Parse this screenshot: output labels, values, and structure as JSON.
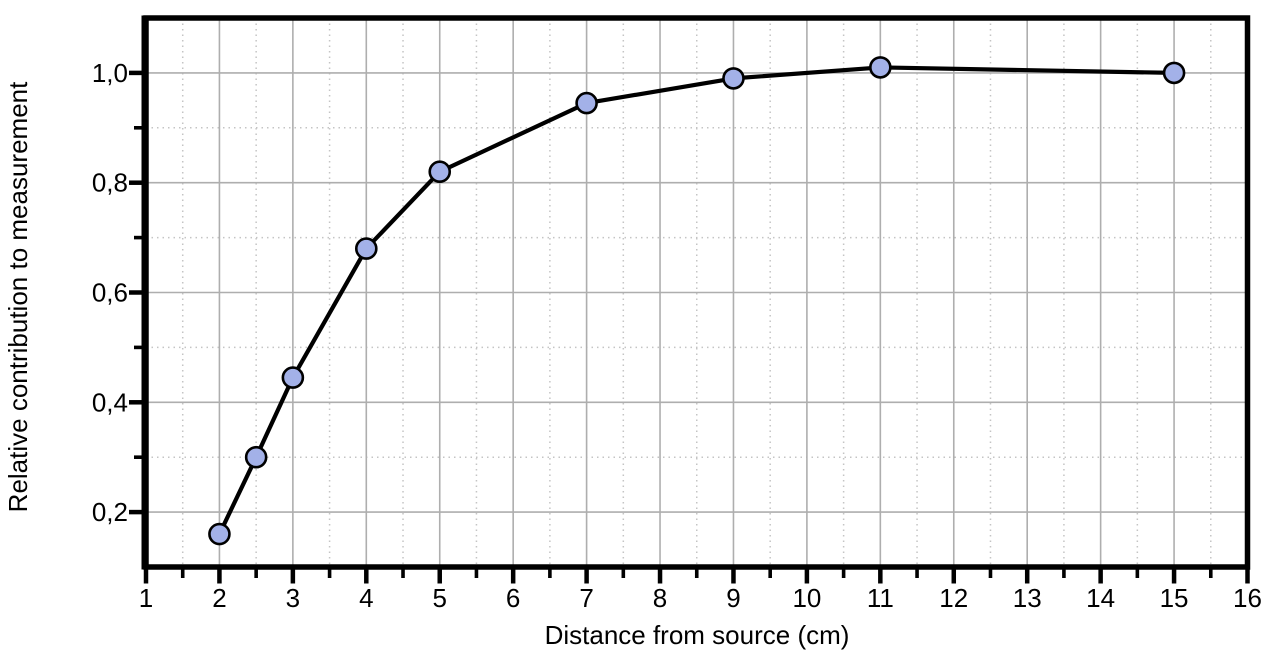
{
  "chart_data": {
    "type": "line",
    "xlabel": "Distance from source (cm)",
    "ylabel": "Relative contribution to measurement",
    "x": [
      2,
      2.5,
      3,
      4,
      5,
      7,
      9,
      11,
      15
    ],
    "y": [
      0.16,
      0.3,
      0.445,
      0.68,
      0.82,
      0.945,
      0.99,
      1.01,
      1.0
    ],
    "xlim": [
      1,
      16
    ],
    "ylim": [
      0.1,
      1.1
    ],
    "x_major_ticks": [
      1,
      2,
      3,
      4,
      5,
      6,
      7,
      8,
      9,
      10,
      11,
      12,
      13,
      14,
      15,
      16
    ],
    "x_tick_labels": [
      "1",
      "2",
      "3",
      "4",
      "5",
      "6",
      "7",
      "8",
      "9",
      "10",
      "11",
      "12",
      "13",
      "14",
      "15",
      "16"
    ],
    "x_minor_ticks": [
      1.5,
      2.5,
      3.5,
      4.5,
      5.5,
      6.5,
      7.5,
      8.5,
      9.5,
      10.5,
      11.5,
      12.5,
      13.5,
      14.5,
      15.5
    ],
    "y_major_ticks": [
      0.2,
      0.4,
      0.6,
      0.8,
      1.0
    ],
    "y_tick_labels": [
      "0,2",
      "0,4",
      "0,6",
      "0,8",
      "1,0"
    ],
    "y_minor_ticks": [
      0.3,
      0.5,
      0.7,
      0.9
    ],
    "decimal_separator": ",",
    "legend": null,
    "grid": {
      "major": "solid",
      "minor": "dotted"
    },
    "colors": {
      "line": "#000000",
      "marker_fill": "#a3b1e8",
      "marker_stroke": "#000000",
      "grid_major": "#aeaeae",
      "grid_minor": "#c4c4c4",
      "axis": "#000000",
      "text": "#000000",
      "background": "#ffffff"
    }
  }
}
